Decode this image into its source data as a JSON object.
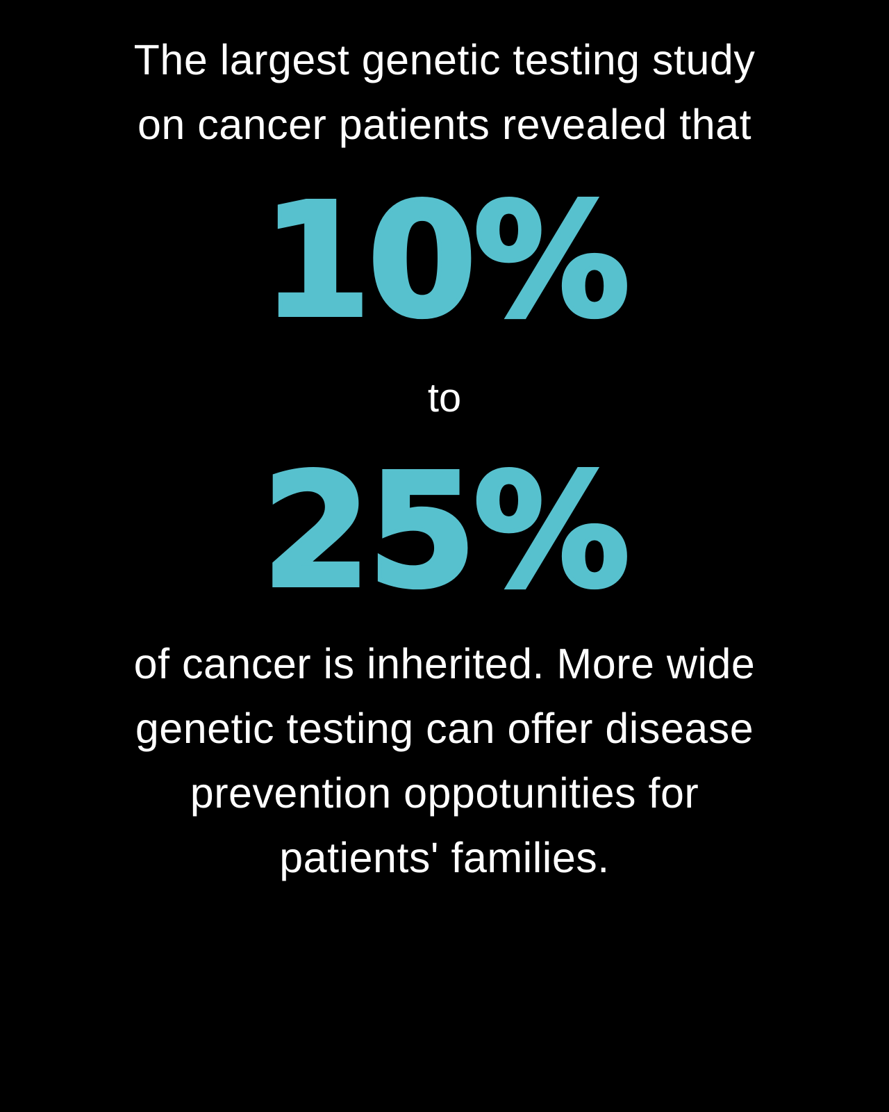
{
  "colors": {
    "background": "#000000",
    "text": "#FFFFFF",
    "accent": "#57C1CE"
  },
  "infographic": {
    "intro_lines": [
      "The largest genetic testing study",
      "on cancer patients revealed that"
    ],
    "stat_low": "10%",
    "connector": "to",
    "stat_high": "25%",
    "body_lines": [
      "of cancer is inherited. More wide",
      "genetic testing can offer disease",
      "prevention oppotunities for",
      "patients' families."
    ]
  }
}
